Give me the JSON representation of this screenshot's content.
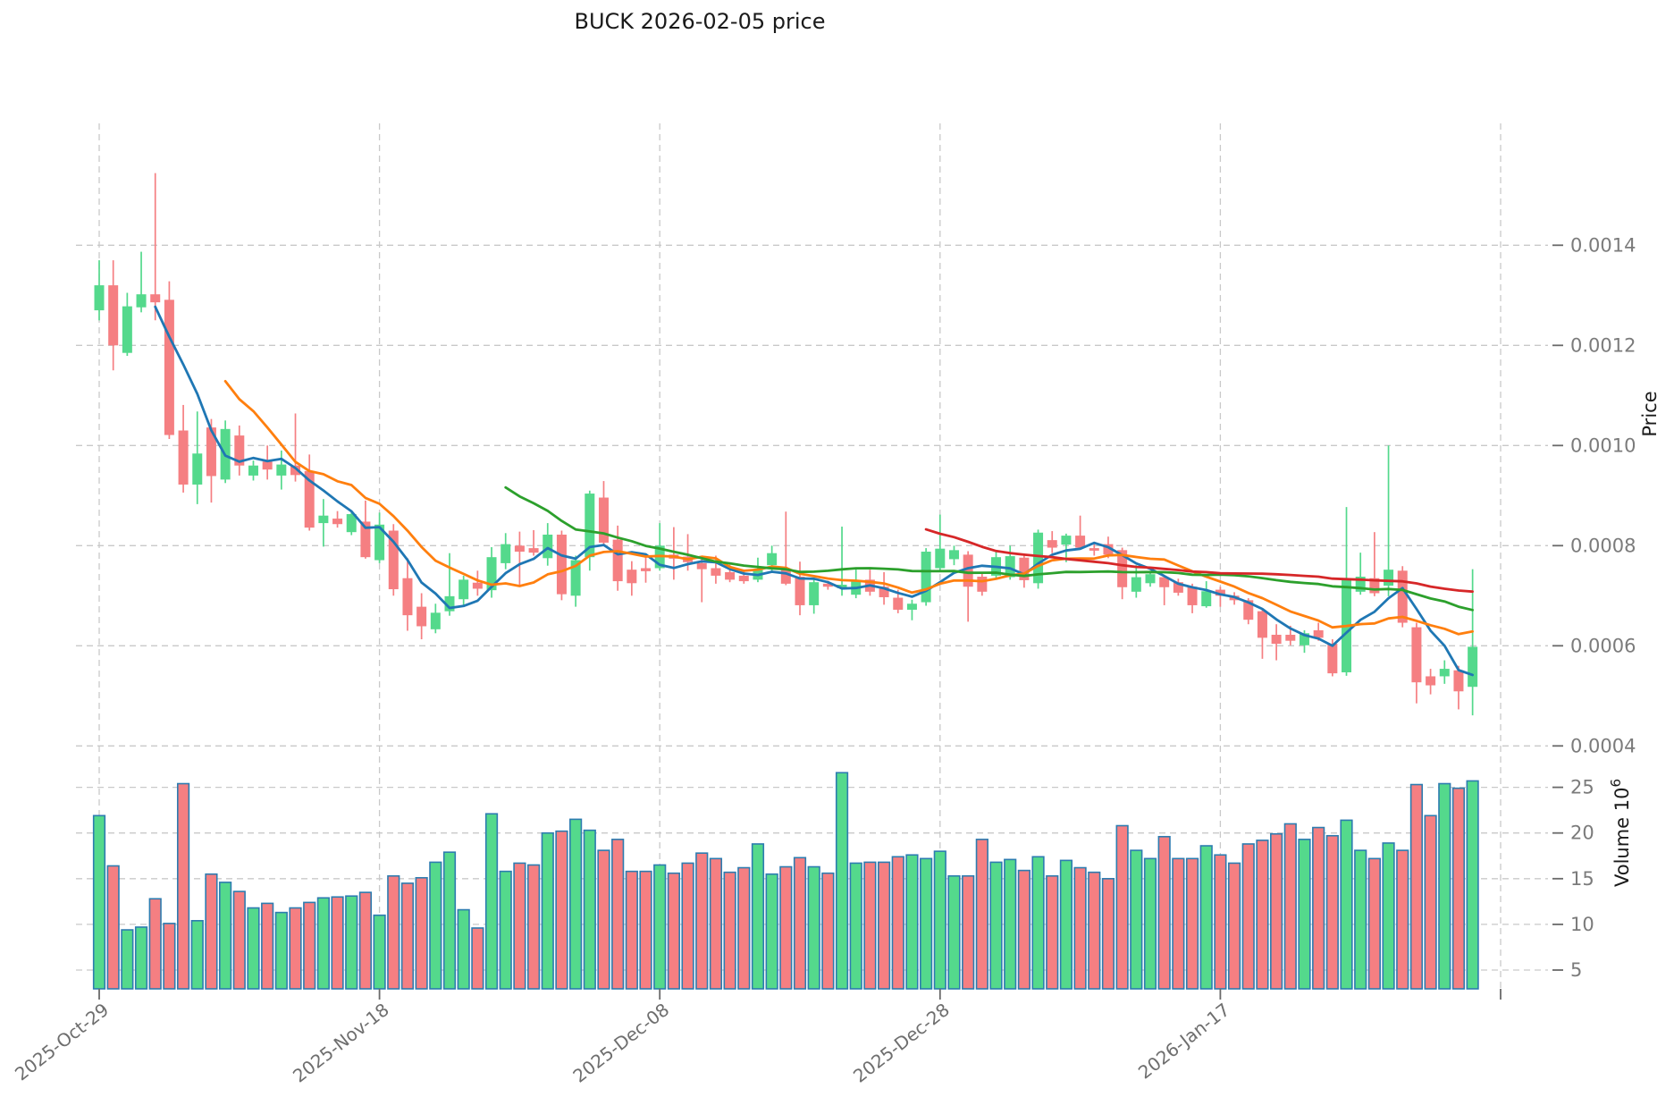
{
  "title": "BUCK  2026-02-05  price",
  "axes": {
    "price_label": "Price",
    "volume_label_base": "Volume  10",
    "volume_exponent": "6",
    "price_ticks": [
      "0.0014",
      "0.0012",
      "0.0010",
      "0.0008",
      "0.0006",
      "0.0004"
    ],
    "volume_ticks": [
      "25",
      "20",
      "15",
      "10",
      "5"
    ],
    "date_ticks": [
      {
        "label": "2025-Oct-29",
        "day": 0
      },
      {
        "label": "2025-Nov-18",
        "day": 20
      },
      {
        "label": "2025-Dec-08",
        "day": 40
      },
      {
        "label": "2025-Dec-28",
        "day": 60
      },
      {
        "label": "2026-Jan-17",
        "day": 80
      },
      {
        "label": "",
        "day": 100
      }
    ]
  },
  "chart_data": {
    "type": "candlestick",
    "symbol": "BUCK",
    "as_of_date": "2026-02-05",
    "title": "BUCK  2026-02-05  price",
    "ylabel": "Price",
    "ylabel_volume": "Volume 10^6",
    "price_axis_range": [
      0.0004,
      0.0014
    ],
    "volume_axis_range_millions": [
      5,
      25
    ],
    "grid": true,
    "price_unit": 1e-06,
    "volume_unit_millions": 1000000,
    "moving_averages": {
      "periods": [
        5,
        10,
        30,
        60
      ],
      "colors": [
        "#1f77b4",
        "#ff7f0e",
        "#2ca02c",
        "#d62728"
      ]
    },
    "colors": {
      "up": "#54d98c",
      "down": "#f57f82",
      "volume_edge": "#2d7cb0",
      "grid": "#c9c9c9",
      "tick_text": "#7b7b7b",
      "date_text": "#6e6e6e",
      "tick_mark": "#6a6a6a",
      "title_text": "#1a1a1a"
    },
    "dates": [
      "2025-10-29",
      "2025-10-30",
      "2025-10-31",
      "2025-11-01",
      "2025-11-02",
      "2025-11-03",
      "2025-11-04",
      "2025-11-05",
      "2025-11-06",
      "2025-11-07",
      "2025-11-08",
      "2025-11-09",
      "2025-11-10",
      "2025-11-11",
      "2025-11-12",
      "2025-11-13",
      "2025-11-14",
      "2025-11-15",
      "2025-11-16",
      "2025-11-17",
      "2025-11-18",
      "2025-11-19",
      "2025-11-20",
      "2025-11-21",
      "2025-11-22",
      "2025-11-23",
      "2025-11-24",
      "2025-11-25",
      "2025-11-26",
      "2025-11-27",
      "2025-11-28",
      "2025-11-29",
      "2025-11-30",
      "2025-12-01",
      "2025-12-02",
      "2025-12-03",
      "2025-12-04",
      "2025-12-05",
      "2025-12-06",
      "2025-12-07",
      "2025-12-08",
      "2025-12-09",
      "2025-12-10",
      "2025-12-11",
      "2025-12-12",
      "2025-12-13",
      "2025-12-14",
      "2025-12-15",
      "2025-12-16",
      "2025-12-17",
      "2025-12-18",
      "2025-12-19",
      "2025-12-20",
      "2025-12-21",
      "2025-12-22",
      "2025-12-23",
      "2025-12-24",
      "2025-12-25",
      "2025-12-26",
      "2025-12-27",
      "2025-12-28",
      "2025-12-29",
      "2025-12-30",
      "2025-12-31",
      "2026-01-01",
      "2026-01-02",
      "2026-01-03",
      "2026-01-04",
      "2026-01-05",
      "2026-01-06",
      "2026-01-07",
      "2026-01-08",
      "2026-01-09",
      "2026-01-10",
      "2026-01-11",
      "2026-01-12",
      "2026-01-13",
      "2026-01-14",
      "2026-01-15",
      "2026-01-16",
      "2026-01-17",
      "2026-01-18",
      "2026-01-19",
      "2026-01-20",
      "2026-01-21",
      "2026-01-22",
      "2026-01-23",
      "2026-01-24",
      "2026-01-25",
      "2026-01-26",
      "2026-01-27",
      "2026-01-28",
      "2026-01-29",
      "2026-01-30",
      "2026-01-31",
      "2026-02-01",
      "2026-02-02",
      "2026-02-03",
      "2026-02-04"
    ],
    "open_micro": [
      1270,
      1320,
      1185,
      1276,
      1302,
      1291,
      1030,
      922,
      1036,
      932,
      1020,
      940,
      968,
      940,
      960,
      949,
      845,
      854,
      827,
      848,
      771,
      830,
      735,
      678,
      633,
      669,
      693,
      726,
      711,
      765,
      800,
      795,
      775,
      822,
      700,
      777,
      896,
      812,
      752,
      755,
      755,
      782,
      778,
      765,
      755,
      747,
      740,
      732,
      761,
      753,
      738,
      681,
      724,
      715,
      702,
      732,
      718,
      696,
      672,
      687,
      755,
      773,
      782,
      738,
      740,
      737,
      776,
      725,
      811,
      802,
      820,
      795,
      803,
      791,
      708,
      725,
      737,
      727,
      718,
      679,
      712,
      700,
      691,
      669,
      622,
      622,
      601,
      631,
      604,
      547,
      708,
      735,
      720,
      750,
      637,
      539,
      539,
      551,
      518
    ],
    "high_micro": [
      1370,
      1370,
      1305,
      1387,
      1544,
      1328,
      1081,
      1068,
      1053,
      1050,
      1040,
      970,
      1000,
      990,
      1064,
      982,
      893,
      869,
      869,
      890,
      866,
      843,
      775,
      705,
      684,
      785,
      740,
      750,
      797,
      825,
      828,
      831,
      845,
      830,
      780,
      910,
      929,
      840,
      769,
      782,
      845,
      837,
      823,
      775,
      780,
      762,
      751,
      776,
      800,
      868,
      768,
      733,
      730,
      838,
      755,
      752,
      747,
      712,
      692,
      795,
      862,
      800,
      789,
      745,
      788,
      800,
      782,
      832,
      829,
      824,
      860,
      805,
      818,
      796,
      761,
      748,
      741,
      734,
      724,
      729,
      718,
      707,
      695,
      675,
      643,
      640,
      631,
      646,
      613,
      877,
      786,
      827,
      1000,
      759,
      646,
      554,
      571,
      560,
      753
    ],
    "low_micro": [
      1250,
      1150,
      1179,
      1266,
      1250,
      1013,
      906,
      883,
      886,
      925,
      940,
      930,
      932,
      912,
      928,
      830,
      798,
      836,
      821,
      774,
      765,
      700,
      630,
      613,
      625,
      660,
      680,
      700,
      696,
      753,
      722,
      780,
      760,
      691,
      678,
      750,
      800,
      710,
      700,
      726,
      750,
      732,
      750,
      687,
      724,
      727,
      724,
      727,
      747,
      721,
      661,
      664,
      712,
      700,
      695,
      700,
      682,
      665,
      651,
      680,
      750,
      761,
      648,
      700,
      735,
      732,
      716,
      714,
      785,
      767,
      793,
      780,
      775,
      693,
      696,
      718,
      681,
      700,
      665,
      676,
      678,
      682,
      643,
      574,
      571,
      601,
      586,
      610,
      539,
      540,
      702,
      699,
      699,
      637,
      485,
      503,
      524,
      473,
      461
    ],
    "close_micro": [
      1320,
      1200,
      1278,
      1302,
      1286,
      1021,
      922,
      984,
      939,
      1033,
      960,
      960,
      952,
      962,
      941,
      836,
      860,
      843,
      863,
      777,
      842,
      713,
      661,
      639,
      666,
      699,
      732,
      714,
      777,
      803,
      788,
      786,
      822,
      703,
      771,
      904,
      806,
      729,
      725,
      749,
      800,
      774,
      767,
      753,
      740,
      732,
      729,
      753,
      785,
      724,
      681,
      727,
      718,
      722,
      729,
      708,
      697,
      672,
      684,
      788,
      794,
      791,
      718,
      708,
      777,
      779,
      731,
      826,
      796,
      820,
      796,
      790,
      782,
      717,
      737,
      743,
      717,
      706,
      681,
      709,
      700,
      691,
      652,
      616,
      604,
      610,
      625,
      616,
      545,
      735,
      738,
      705,
      752,
      646,
      527,
      521,
      554,
      509,
      598
    ],
    "volume_millions": [
      21.9,
      16.4,
      9.4,
      9.7,
      12.8,
      10.1,
      25.4,
      10.4,
      15.5,
      14.6,
      13.6,
      11.8,
      12.3,
      11.3,
      11.8,
      12.4,
      12.9,
      13.0,
      13.1,
      13.5,
      11.0,
      15.3,
      14.5,
      15.1,
      16.8,
      17.9,
      11.6,
      9.6,
      22.1,
      15.8,
      16.7,
      16.5,
      20.0,
      20.2,
      21.5,
      20.3,
      18.1,
      19.3,
      15.8,
      15.8,
      16.5,
      15.6,
      16.7,
      17.8,
      17.2,
      15.7,
      16.2,
      18.8,
      15.5,
      16.3,
      17.3,
      16.3,
      15.6,
      26.6,
      16.7,
      16.8,
      16.8,
      17.4,
      17.6,
      17.2,
      18.0,
      15.3,
      15.3,
      19.3,
      16.8,
      17.1,
      15.9,
      17.4,
      15.3,
      17.0,
      16.2,
      15.7,
      15.0,
      20.8,
      18.1,
      17.2,
      19.6,
      17.2,
      17.2,
      18.6,
      17.6,
      16.7,
      18.8,
      19.2,
      19.9,
      21.0,
      19.3,
      20.6,
      19.7,
      21.4,
      18.1,
      17.2,
      18.9,
      18.1,
      25.3,
      21.9,
      25.4,
      24.9,
      25.7
    ]
  }
}
